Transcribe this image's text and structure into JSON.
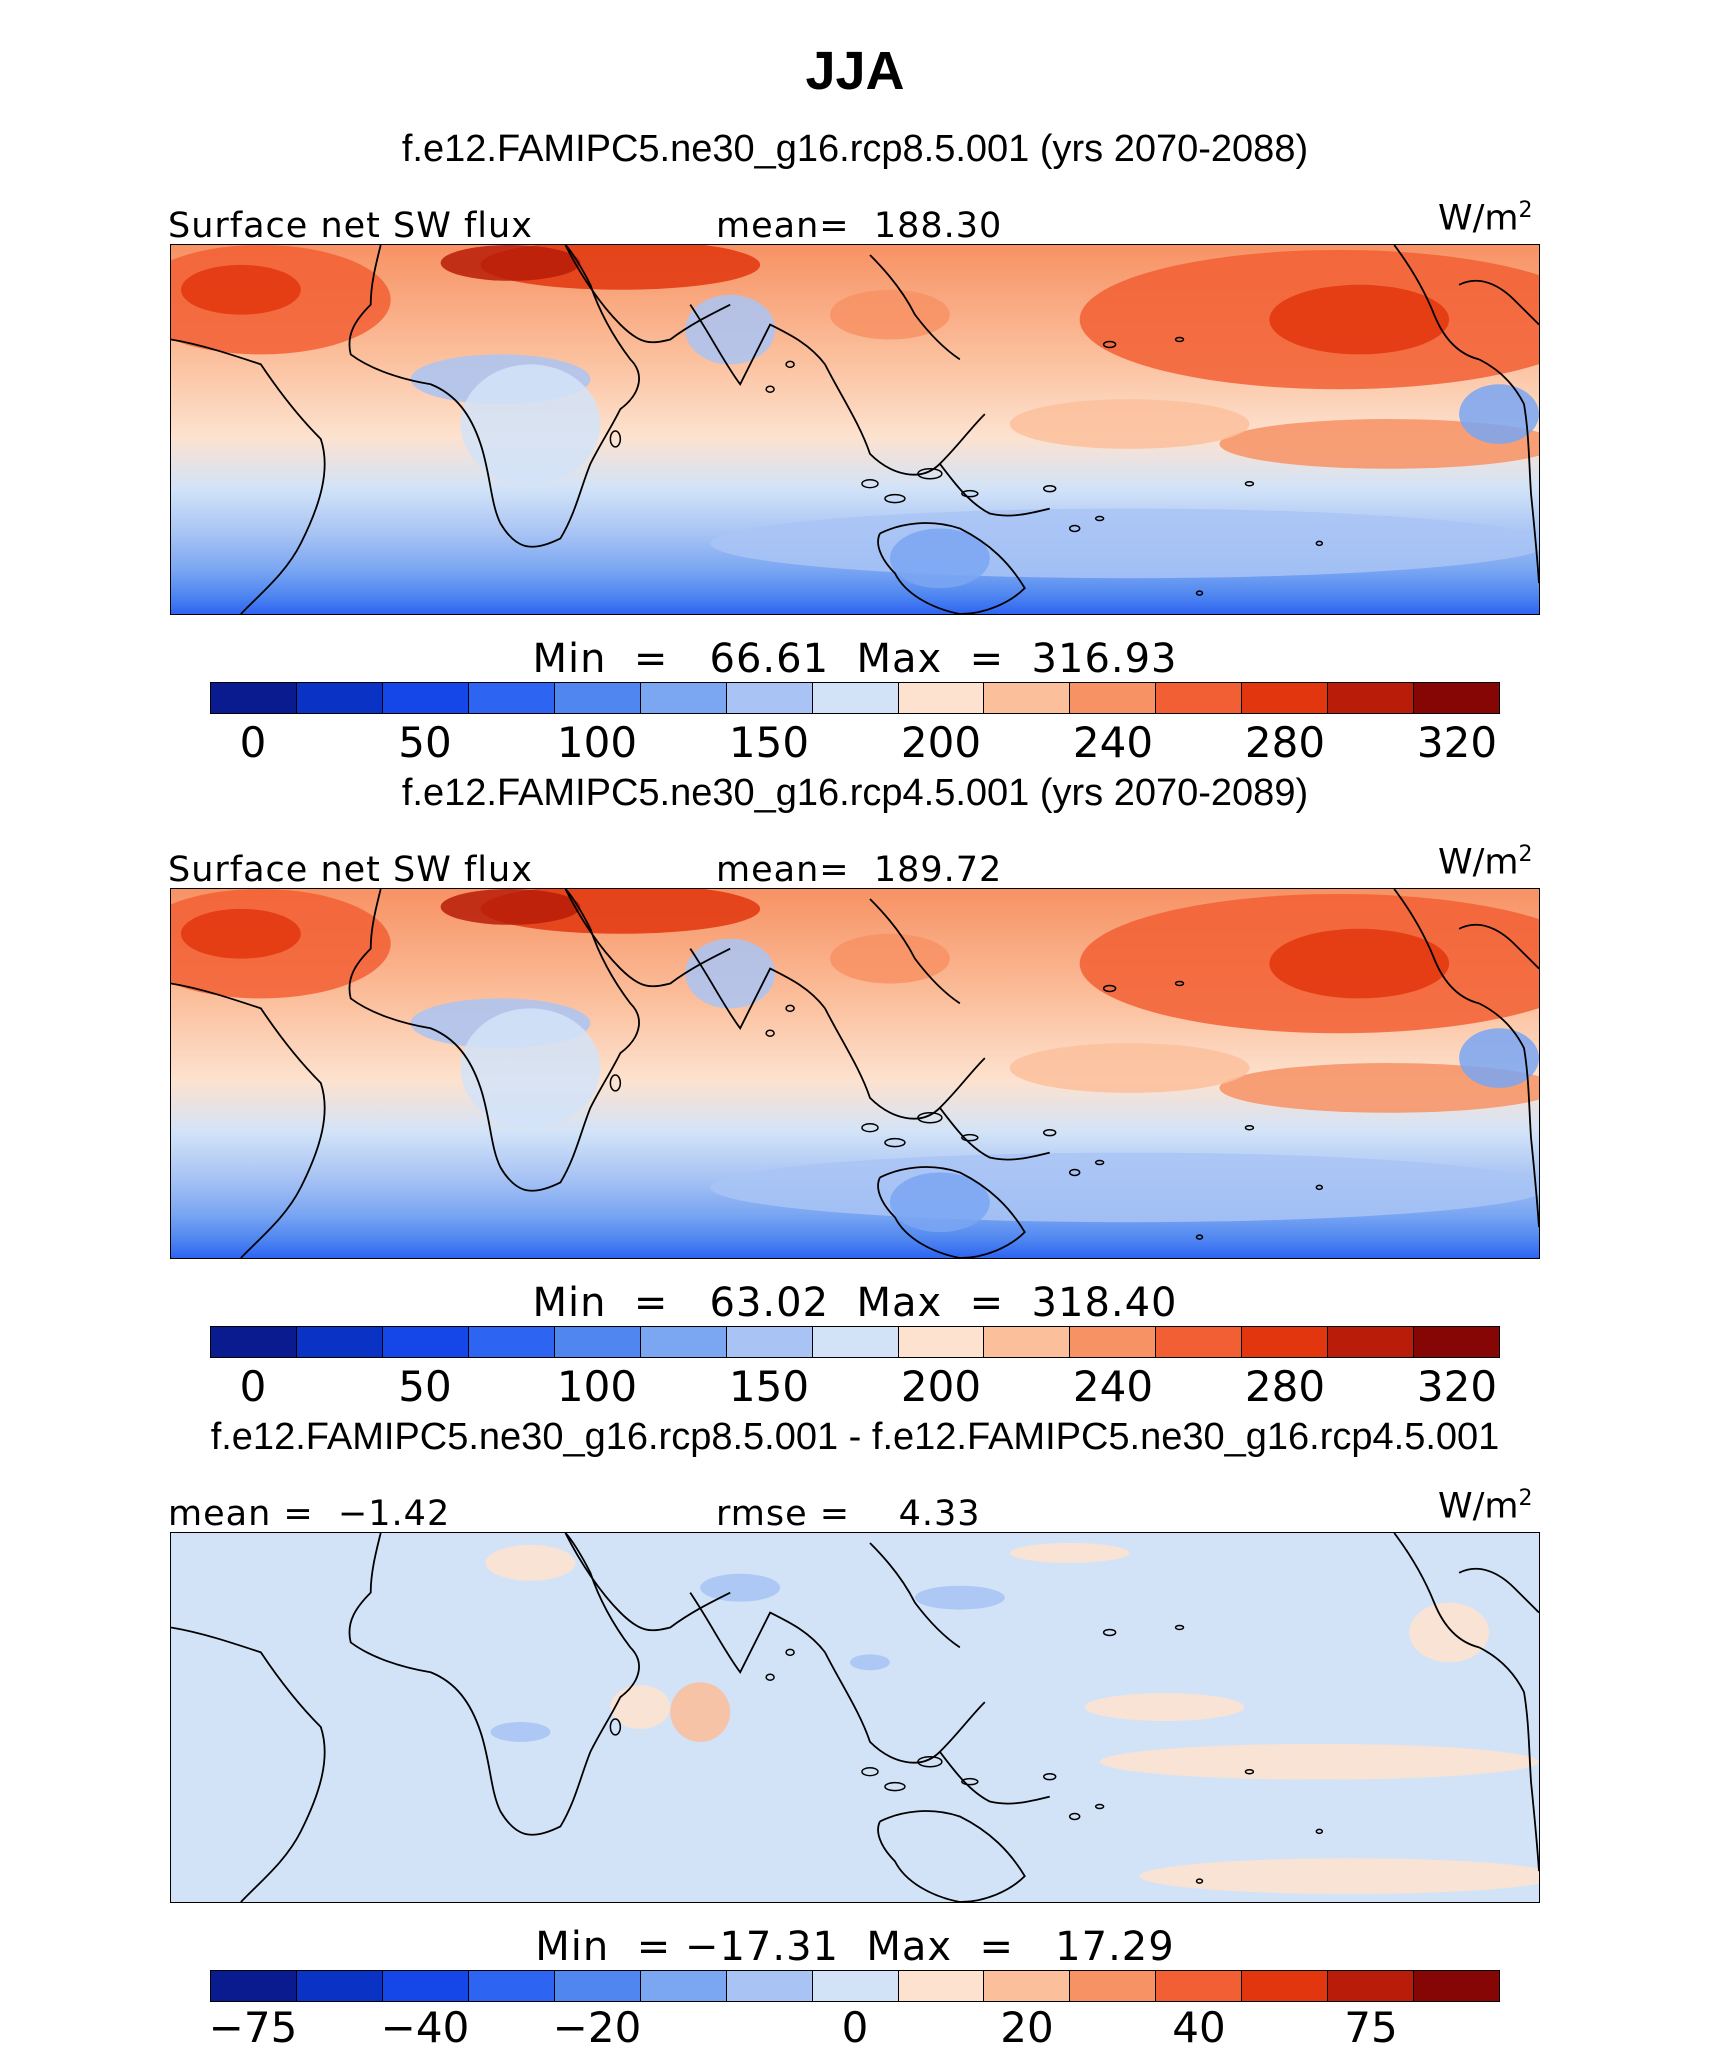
{
  "title": "JJA",
  "colors": {
    "palette12": [
      "#0a1a8f",
      "#0a32c4",
      "#1446e8",
      "#2e64f2",
      "#4f86f0",
      "#7aa6f2",
      "#a9c4f4",
      "#d2e3f8",
      "#fde2cf",
      "#fbbf9c",
      "#f79264",
      "#f25f34",
      "#e2360e",
      "#b91c08",
      "#850604"
    ],
    "land_line": "#000000"
  },
  "panels": [
    {
      "case_title": "f.e12.FAMIPC5.ne30_g16.rcp8.5.001 (yrs 2070-2088)",
      "left_label": "Surface net SW flux",
      "center_label": "mean=  188.30",
      "units": "W/m",
      "units_sup": "2",
      "minmax": "Min  =   66.61  Max  =  316.93",
      "colorbar_ticks": [
        "0",
        "50",
        "100",
        "150",
        "200",
        "240",
        "280",
        "320"
      ],
      "field": "abs"
    },
    {
      "case_title": "f.e12.FAMIPC5.ne30_g16.rcp4.5.001 (yrs 2070-2089)",
      "left_label": "Surface net SW flux",
      "center_label": "mean=  189.72",
      "units": "W/m",
      "units_sup": "2",
      "minmax": "Min  =   63.02  Max  =  318.40",
      "colorbar_ticks": [
        "0",
        "50",
        "100",
        "150",
        "200",
        "240",
        "280",
        "320"
      ],
      "field": "abs"
    },
    {
      "case_title": "f.e12.FAMIPC5.ne30_g16.rcp8.5.001 - f.e12.FAMIPC5.ne30_g16.rcp4.5.001",
      "left_label": "mean =  −1.42",
      "center_label": "rmse =    4.33",
      "units": "W/m",
      "units_sup": "2",
      "minmax": "Min  = −17.31  Max  =   17.29",
      "colorbar_ticks": [
        "−75",
        "−40",
        "−20",
        "0",
        "20",
        "40",
        "75"
      ],
      "field": "diff"
    }
  ]
}
